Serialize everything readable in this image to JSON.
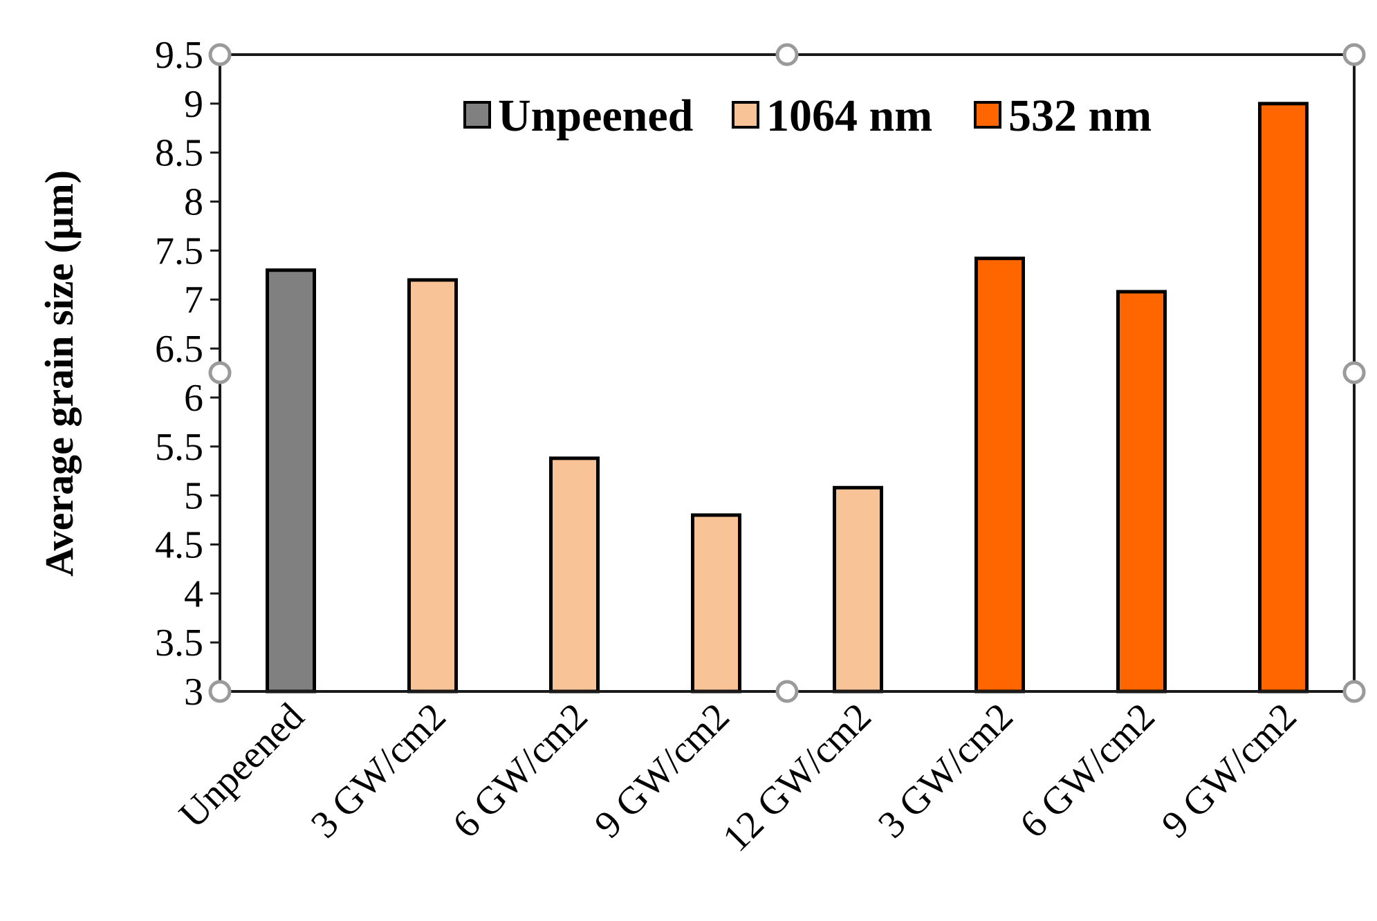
{
  "chart_data": {
    "type": "bar",
    "title": "",
    "xlabel": "",
    "ylabel": "Average grain size (µm)",
    "ylim": [
      3,
      9.5
    ],
    "yticks": [
      "3",
      "3.5",
      "4",
      "4.5",
      "5",
      "5.5",
      "6",
      "6.5",
      "7",
      "7.5",
      "8",
      "8.5",
      "9",
      "9.5"
    ],
    "categories": [
      "Unpeened",
      "3 GW/cm2",
      "6 GW/cm2",
      "9 GW/cm2",
      "12 GW/cm2",
      "3 GW/cm2",
      "6 GW/cm2",
      "9 GW/cm2"
    ],
    "values": [
      7.3,
      7.2,
      5.38,
      4.8,
      5.08,
      7.42,
      7.08,
      9.0
    ],
    "bar_series": [
      0,
      1,
      1,
      1,
      1,
      2,
      2,
      2
    ],
    "series": [
      {
        "name": "Unpeened",
        "color": "#808080"
      },
      {
        "name": "1064 nm",
        "color": "#f8c497"
      },
      {
        "name": "532 nm",
        "color": "#ff6600"
      }
    ],
    "legend_position": "top-right",
    "grid": false
  }
}
